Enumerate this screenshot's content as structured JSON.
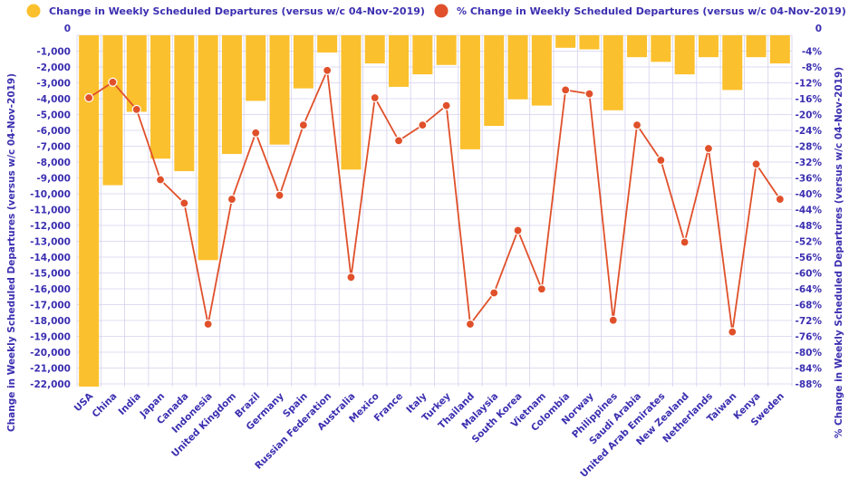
{
  "colors": {
    "bar": "#FBC02D",
    "line": "#E0502A",
    "text": "#3B2FB0",
    "grid": "#D4D0EE"
  },
  "chart_data": {
    "type": "bar+line",
    "categories": [
      "USA",
      "China",
      "India",
      "Japan",
      "Canada",
      "Indonesia",
      "United Kingdom",
      "Brazil",
      "Germany",
      "Spain",
      "Russian Federation",
      "Australia",
      "Mexico",
      "France",
      "Italy",
      "Turkey",
      "Thailand",
      "Malaysia",
      "South Korea",
      "Vietnam",
      "Colombia",
      "Norway",
      "Philippines",
      "Saudi Arabia",
      "United Arab Emirates",
      "New Zealand",
      "Netherlands",
      "Taiwan",
      "Kenya",
      "Sweden"
    ],
    "series": [
      {
        "name": "Change in Weekly Scheduled Departures (versus w/c 04-Nov-2019)",
        "type": "bar",
        "axis": "left",
        "values": [
          -22500,
          -9600,
          -4900,
          -7900,
          -8700,
          -14400,
          -7600,
          -4200,
          -7000,
          -3400,
          -1100,
          -8600,
          -1800,
          -3300,
          -2500,
          -1900,
          -7300,
          -5800,
          -4100,
          -4500,
          -800,
          -900,
          -4800,
          -1400,
          -1700,
          -2500,
          -1400,
          -3500,
          -1400,
          -1800
        ]
      },
      {
        "name": "% Change in Weekly Scheduled Departures (versus w/c 04-Nov-2019)",
        "type": "line",
        "axis": "right",
        "values": [
          -16,
          -12,
          -19,
          -37,
          -43,
          -74,
          -42,
          -25,
          -41,
          -23,
          -9,
          -62,
          -16,
          -27,
          -23,
          -18,
          -74,
          -66,
          -50,
          -65,
          -14,
          -15,
          -73,
          -23,
          -32,
          -53,
          -29,
          -76,
          -33,
          -42
        ]
      }
    ],
    "y_left": {
      "label": "Change in Weekly Scheduled Departures (versus w/c 04-Nov-2019)",
      "ticks": [
        "0",
        "-1,000",
        "-2,000",
        "-3,000",
        "-4,000",
        "-5,000",
        "-6,000",
        "-7,000",
        "-8,000",
        "-9,000",
        "-10,000",
        "-11,000",
        "-12,000",
        "-13,000",
        "-14,000",
        "-15,000",
        "-16,000",
        "-17,000",
        "-18,000",
        "-19,000",
        "-20,000",
        "-21,000",
        "-22,000"
      ],
      "range": [
        -22500,
        0
      ]
    },
    "y_right": {
      "label": "% Change in Weekly Scheduled Departures (versus w/c 04-Nov-2019)",
      "ticks": [
        "0",
        "-4%",
        "-8%",
        "-12%",
        "-16%",
        "-20%",
        "-24%",
        "-28%",
        "-32%",
        "-36%",
        "-40%",
        "-44%",
        "-48%",
        "-52%",
        "-56%",
        "-60%",
        "-64%",
        "-68%",
        "-72%",
        "-76%",
        "-80%",
        "-84%",
        "-88%"
      ],
      "range": [
        -90,
        0
      ]
    },
    "grid": true,
    "legend_position": "top"
  }
}
